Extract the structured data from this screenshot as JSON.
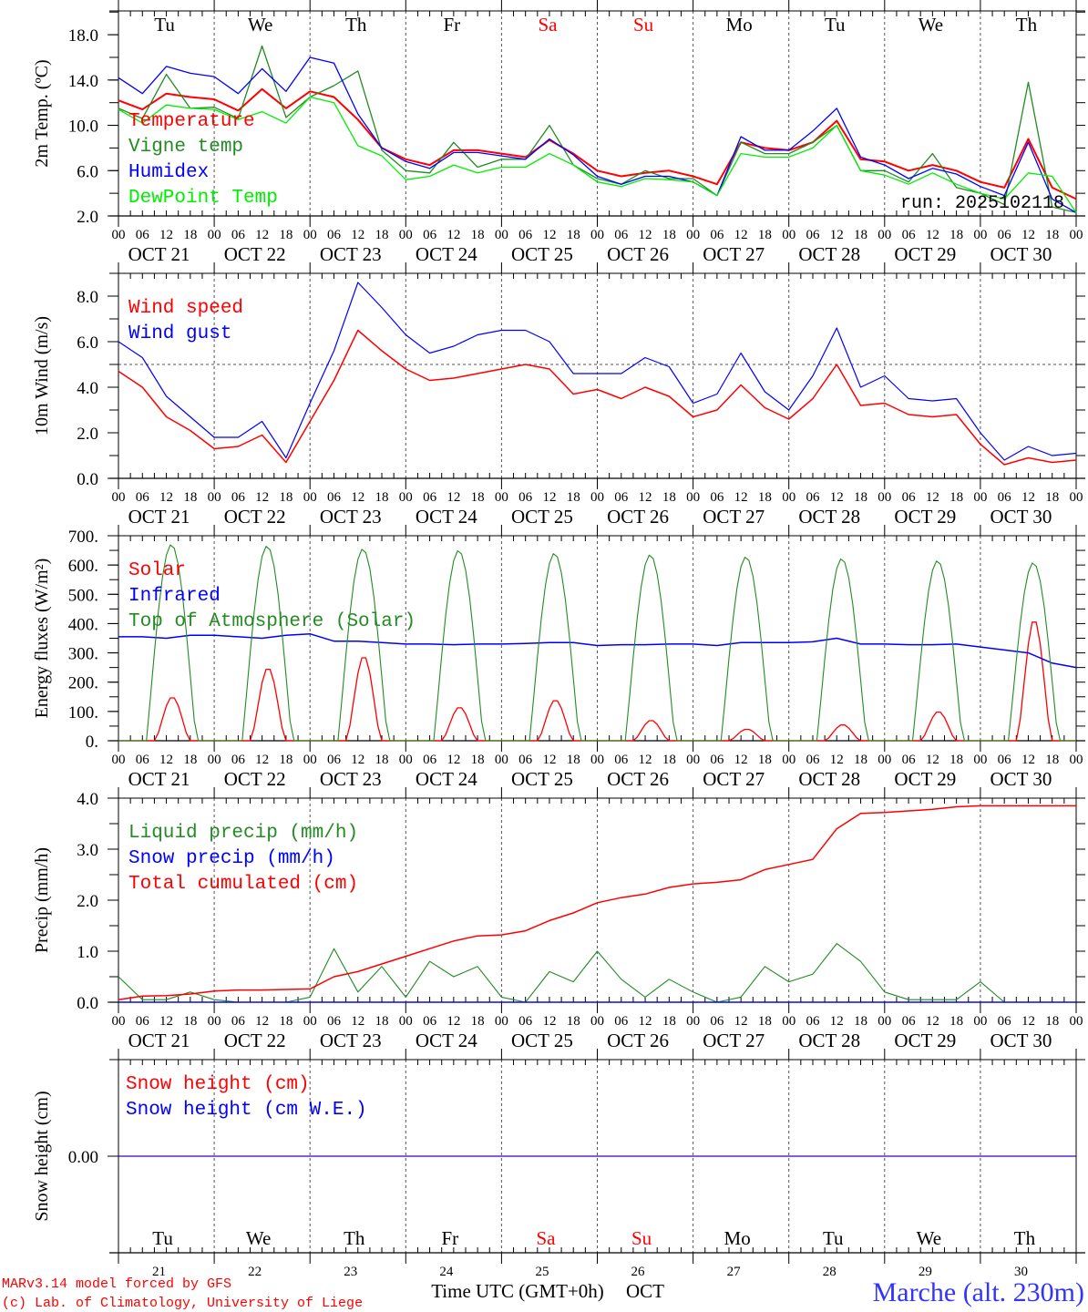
{
  "days": [
    "Tu",
    "We",
    "Th",
    "Fr",
    "Sa",
    "Su",
    "Mo",
    "Tu",
    "We",
    "Th"
  ],
  "day_colors": [
    "#000000",
    "#000000",
    "#000000",
    "#000000",
    "#ff0000",
    "#ff0000",
    "#000000",
    "#000000",
    "#000000",
    "#000000"
  ],
  "dates": [
    "OCT 21",
    "OCT 22",
    "OCT 23",
    "OCT 24",
    "OCT 25",
    "OCT 26",
    "OCT 27",
    "OCT 28",
    "OCT 29",
    "OCT 30"
  ],
  "day_numbers": [
    "21",
    "22",
    "23",
    "24",
    "25",
    "26",
    "27",
    "28",
    "29",
    "30"
  ],
  "hour_labels": [
    "00",
    "06",
    "12",
    "18"
  ],
  "run_label": "run: 2025102118",
  "footer": {
    "model": "MARv3.14 model forced by GFS",
    "copyright": "(c) Lab. of Climatology, University of Liege",
    "xlabel": "Time UTC (GMT+0h)",
    "month": "OCT",
    "site": "Marche (alt. 230m)"
  },
  "chart_data": [
    {
      "type": "line",
      "ylabel": "2m Temp. (ºC)",
      "ylim": [
        2,
        20.1
      ],
      "yticks": [
        2,
        6,
        10,
        14,
        18
      ],
      "ytick_labels": [
        "2.0",
        "6.0",
        "10.0",
        "14.0",
        "18.0"
      ],
      "yminor": 2,
      "x_step_hours": 6,
      "series": [
        {
          "name": "Temperature",
          "color": "#ff0000",
          "width": 2,
          "values": [
            12.2,
            11.4,
            12.8,
            12.5,
            12.3,
            11.3,
            13.2,
            11.5,
            13.0,
            12.5,
            10.5,
            8.0,
            7.0,
            6.5,
            7.8,
            7.8,
            7.5,
            7.2,
            8.7,
            7.5,
            6.0,
            5.5,
            5.8,
            6.0,
            5.5,
            4.8,
            8.5,
            8.0,
            7.8,
            8.5,
            10.4,
            7.0,
            6.8,
            6.0,
            6.5,
            6.0,
            5.0,
            4.5,
            8.8,
            4.5,
            3.5
          ]
        },
        {
          "name": "Vigne temp",
          "color": "#228b22",
          "width": 1.3,
          "values": [
            11.5,
            10.6,
            14.5,
            11.5,
            11.6,
            10.6,
            17.0,
            10.7,
            12.5,
            13.5,
            14.8,
            7.8,
            6.0,
            5.8,
            8.5,
            6.3,
            7.0,
            7.0,
            10.0,
            6.5,
            5.3,
            4.8,
            6.0,
            5.3,
            5.3,
            3.8,
            8.5,
            7.5,
            7.5,
            8.5,
            10.0,
            6.0,
            6.0,
            5.0,
            7.5,
            4.5,
            4.0,
            3.0,
            13.8,
            2.8,
            2.3
          ]
        },
        {
          "name": "Humidex",
          "color": "#0000ff",
          "width": 1.3,
          "values": [
            14.2,
            12.8,
            15.2,
            14.6,
            14.3,
            12.8,
            15.0,
            13.0,
            16.0,
            15.5,
            11.0,
            8.0,
            6.8,
            6.2,
            7.6,
            7.6,
            7.3,
            7.0,
            8.8,
            7.4,
            5.5,
            4.8,
            5.5,
            5.5,
            5.0,
            3.8,
            9.0,
            7.8,
            7.8,
            9.5,
            11.5,
            7.2,
            6.5,
            5.3,
            6.2,
            5.7,
            4.6,
            3.8,
            8.5,
            3.5,
            2.3
          ]
        },
        {
          "name": "DewPoint Temp",
          "color": "#00ee00",
          "width": 1.3,
          "values": [
            11.4,
            10.2,
            11.8,
            11.5,
            11.4,
            10.5,
            11.2,
            10.2,
            12.5,
            12.0,
            8.2,
            7.3,
            5.2,
            5.5,
            6.5,
            5.8,
            6.3,
            6.3,
            7.5,
            6.5,
            5.0,
            4.6,
            5.3,
            5.2,
            5.0,
            3.8,
            7.5,
            7.2,
            7.2,
            8.0,
            10.0,
            6.0,
            5.6,
            4.8,
            5.8,
            4.8,
            4.0,
            3.5,
            5.8,
            5.5,
            2.3
          ]
        }
      ]
    },
    {
      "type": "line",
      "ylabel": "10m Wind (m/s)",
      "ylim": [
        0,
        9
      ],
      "yticks": [
        0,
        2,
        4,
        6,
        8
      ],
      "ytick_labels": [
        "0.0",
        "2.0",
        "4.0",
        "6.0",
        "8.0"
      ],
      "yminor": 1,
      "reference_line": 5,
      "x_step_hours": 6,
      "series": [
        {
          "name": "Wind speed",
          "color": "#ff0000",
          "width": 1.5,
          "values": [
            4.7,
            4.0,
            2.7,
            2.1,
            1.3,
            1.4,
            1.9,
            0.7,
            2.5,
            4.3,
            6.5,
            5.6,
            4.8,
            4.3,
            4.4,
            4.6,
            4.8,
            5.0,
            4.8,
            3.7,
            3.9,
            3.5,
            4.0,
            3.6,
            2.7,
            3.0,
            4.1,
            3.1,
            2.6,
            3.5,
            5.0,
            3.2,
            3.3,
            2.8,
            2.7,
            2.8,
            1.5,
            0.6,
            0.9,
            0.7,
            0.8
          ]
        },
        {
          "name": "Wind gust",
          "color": "#0000ff",
          "width": 1.2,
          "values": [
            6.0,
            5.3,
            3.6,
            2.7,
            1.8,
            1.8,
            2.5,
            0.9,
            3.3,
            5.6,
            8.6,
            7.5,
            6.3,
            5.5,
            5.8,
            6.3,
            6.5,
            6.5,
            6.0,
            4.6,
            4.6,
            4.6,
            5.3,
            4.9,
            3.3,
            3.7,
            5.5,
            3.8,
            3.0,
            4.5,
            6.6,
            4.0,
            4.5,
            3.5,
            3.4,
            3.5,
            2.0,
            0.8,
            1.4,
            1.0,
            1.1
          ]
        }
      ]
    },
    {
      "type": "line",
      "ylabel": "Energy fluxes (W/m²)",
      "ylim": [
        0,
        700
      ],
      "yticks": [
        0,
        100,
        200,
        300,
        400,
        500,
        600,
        700
      ],
      "ytick_labels": [
        "0.",
        "100.",
        "200.",
        "300.",
        "400.",
        "500.",
        "600.",
        "700."
      ],
      "yminor": 50,
      "series": [
        {
          "name": "Solar",
          "color": "#ff0000",
          "width": 1.3,
          "daily_peak": [
            150,
            250,
            290,
            115,
            140,
            70,
            40,
            55,
            100,
            415
          ]
        },
        {
          "name": "Infrared",
          "color": "#0000ff",
          "width": 1.5,
          "x_step_hours": 6,
          "values": [
            355,
            355,
            350,
            360,
            360,
            355,
            350,
            360,
            365,
            340,
            340,
            335,
            330,
            330,
            328,
            330,
            330,
            332,
            335,
            335,
            325,
            328,
            328,
            330,
            330,
            325,
            335,
            335,
            335,
            338,
            350,
            330,
            330,
            328,
            328,
            330,
            320,
            310,
            300,
            265,
            250
          ]
        },
        {
          "name": "Top of Atmosphere (Solar)",
          "color": "#228b22",
          "width": 1.1,
          "daily_peak": [
            670,
            665,
            655,
            650,
            640,
            635,
            628,
            622,
            615,
            608
          ]
        }
      ]
    },
    {
      "type": "line",
      "ylabel": "Precip (mm/h)",
      "ylim": [
        0,
        4
      ],
      "yticks": [
        0,
        1,
        2,
        3,
        4
      ],
      "ytick_labels": [
        "0.0",
        "1.0",
        "2.0",
        "3.0",
        "4.0"
      ],
      "yminor": 0.5,
      "x_step_hours": 6,
      "series": [
        {
          "name": "Liquid precip (mm/h)",
          "color": "#228b22",
          "width": 1.1,
          "values": [
            0.5,
            0.05,
            0.05,
            0.2,
            0.05,
            0,
            0,
            0,
            0.1,
            1.05,
            0.2,
            0.7,
            0.1,
            0.8,
            0.5,
            0.7,
            0.1,
            0,
            0.6,
            0.4,
            1.0,
            0.45,
            0.1,
            0.45,
            0.2,
            0,
            0.1,
            0.7,
            0.4,
            0.55,
            1.15,
            0.8,
            0.2,
            0.05,
            0.05,
            0.05,
            0.4,
            0,
            0,
            0,
            0
          ]
        },
        {
          "name": "Snow precip (mm/h)",
          "color": "#0000ff",
          "width": 1.3,
          "values": [
            0,
            0,
            0,
            0,
            0,
            0,
            0,
            0,
            0,
            0,
            0,
            0,
            0,
            0,
            0,
            0,
            0,
            0,
            0,
            0,
            0,
            0,
            0,
            0,
            0,
            0,
            0,
            0,
            0,
            0,
            0,
            0,
            0,
            0,
            0,
            0,
            0,
            0,
            0,
            0,
            0
          ]
        },
        {
          "name": "Total cumulated (cm)",
          "color": "#ff0000",
          "width": 1.5,
          "values": [
            0.05,
            0.12,
            0.13,
            0.16,
            0.22,
            0.24,
            0.24,
            0.25,
            0.26,
            0.5,
            0.6,
            0.75,
            0.9,
            1.05,
            1.2,
            1.3,
            1.32,
            1.4,
            1.6,
            1.75,
            1.95,
            2.05,
            2.12,
            2.25,
            2.32,
            2.35,
            2.4,
            2.6,
            2.7,
            2.8,
            3.4,
            3.7,
            3.72,
            3.75,
            3.78,
            3.83,
            3.85,
            3.85,
            3.85,
            3.85,
            3.85
          ]
        }
      ]
    },
    {
      "type": "line",
      "ylabel": "Snow height (cm)",
      "ylim": [
        -1,
        1
      ],
      "yticks": [
        0
      ],
      "ytick_labels": [
        "0.00"
      ],
      "x_step_hours": 6,
      "series": [
        {
          "name": "Snow height (cm)",
          "color": "#ff0000",
          "width": 1.3,
          "values": [
            0,
            0,
            0,
            0,
            0,
            0,
            0,
            0,
            0,
            0,
            0,
            0,
            0,
            0,
            0,
            0,
            0,
            0,
            0,
            0,
            0,
            0,
            0,
            0,
            0,
            0,
            0,
            0,
            0,
            0,
            0,
            0,
            0,
            0,
            0,
            0,
            0,
            0,
            0,
            0,
            0
          ]
        },
        {
          "name": "Snow height (cm W.E.)",
          "color": "#0000ff",
          "width": 1.0,
          "values": [
            0,
            0,
            0,
            0,
            0,
            0,
            0,
            0,
            0,
            0,
            0,
            0,
            0,
            0,
            0,
            0,
            0,
            0,
            0,
            0,
            0,
            0,
            0,
            0,
            0,
            0,
            0,
            0,
            0,
            0,
            0,
            0,
            0,
            0,
            0,
            0,
            0,
            0,
            0,
            0,
            0
          ]
        }
      ]
    }
  ]
}
